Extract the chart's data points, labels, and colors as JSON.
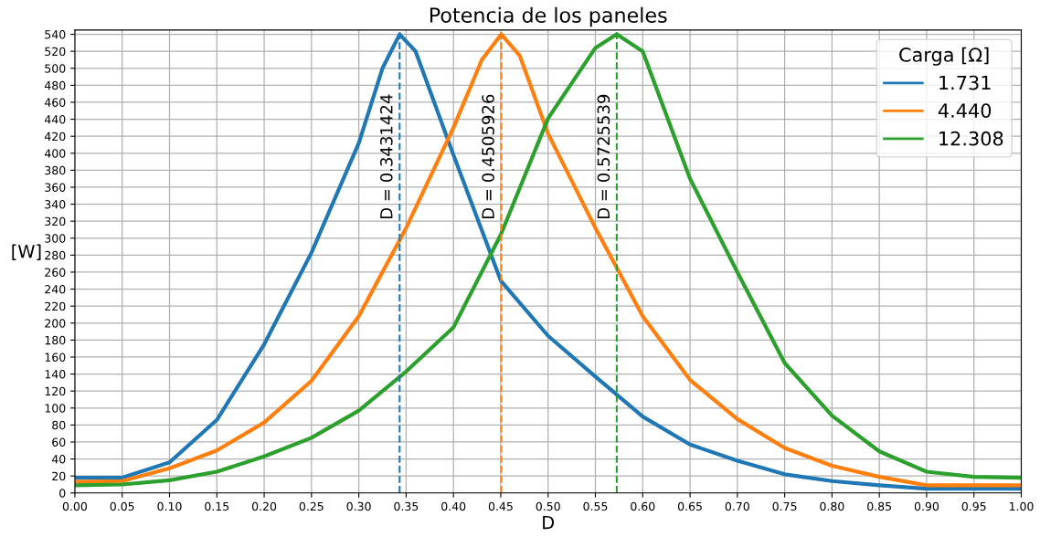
{
  "chart_data": {
    "type": "line",
    "title": "Potencia de los paneles",
    "xlabel": "D",
    "ylabel": "[W]",
    "legend_title": "Carga [Ω]",
    "legend": "top right",
    "grid": true,
    "xlim": [
      0,
      1
    ],
    "ylim": [
      0,
      545
    ],
    "xticks": [
      {
        "value": 0,
        "label": "0.00"
      },
      {
        "value": 0.05,
        "label": "0.05"
      },
      {
        "value": 0.1,
        "label": "0.10"
      },
      {
        "value": 0.15,
        "label": "0.15"
      },
      {
        "value": 0.2,
        "label": "0.20"
      },
      {
        "value": 0.25,
        "label": "0.25"
      },
      {
        "value": 0.3,
        "label": "0.30"
      },
      {
        "value": 0.35,
        "label": "0.35"
      },
      {
        "value": 0.4,
        "label": "0.40"
      },
      {
        "value": 0.45,
        "label": "0.45"
      },
      {
        "value": 0.5,
        "label": "0.50"
      },
      {
        "value": 0.55,
        "label": "0.55"
      },
      {
        "value": 0.6,
        "label": "0.60"
      },
      {
        "value": 0.65,
        "label": "0.65"
      },
      {
        "value": 0.7,
        "label": "0.70"
      },
      {
        "value": 0.75,
        "label": "0.75"
      },
      {
        "value": 0.8,
        "label": "0.80"
      },
      {
        "value": 0.85,
        "label": "0.85"
      },
      {
        "value": 0.9,
        "label": "0.90"
      },
      {
        "value": 0.95,
        "label": "0.95"
      },
      {
        "value": 1,
        "label": "1.00"
      }
    ],
    "yticks": [
      0,
      20,
      40,
      60,
      80,
      100,
      120,
      140,
      160,
      180,
      200,
      220,
      240,
      260,
      280,
      300,
      320,
      340,
      360,
      380,
      400,
      420,
      440,
      460,
      480,
      500,
      520,
      540
    ],
    "series": [
      {
        "name": "1.731",
        "color": "#1f77b4",
        "x": [
          0,
          0.05,
          0.1,
          0.15,
          0.2,
          0.25,
          0.3,
          0.325,
          0.3431424,
          0.36,
          0.4,
          0.45,
          0.5,
          0.55,
          0.6,
          0.65,
          0.7,
          0.75,
          0.8,
          0.85,
          0.9,
          0.95,
          1
        ],
        "values": [
          18,
          18,
          36,
          86,
          175,
          283,
          412,
          500,
          540,
          520,
          398,
          250,
          185,
          137,
          90,
          57,
          38,
          22,
          14,
          9,
          5,
          5,
          5
        ]
      },
      {
        "name": "4.440",
        "color": "#ff7f0e",
        "x": [
          0,
          0.05,
          0.1,
          0.15,
          0.2,
          0.25,
          0.3,
          0.35,
          0.4,
          0.43,
          0.4505926,
          0.47,
          0.5,
          0.55,
          0.6,
          0.65,
          0.7,
          0.75,
          0.8,
          0.85,
          0.9,
          0.95,
          1
        ],
        "values": [
          13,
          14,
          29,
          50,
          83,
          132,
          208,
          312,
          430,
          510,
          540,
          515,
          423,
          312,
          208,
          133,
          87,
          53,
          32,
          19,
          9,
          9,
          9
        ]
      },
      {
        "name": "12.308",
        "color": "#2ca02c",
        "x": [
          0,
          0.05,
          0.1,
          0.15,
          0.2,
          0.25,
          0.3,
          0.35,
          0.4,
          0.45,
          0.5,
          0.55,
          0.5725539,
          0.6,
          0.65,
          0.7,
          0.75,
          0.8,
          0.85,
          0.9,
          0.95,
          1
        ],
        "values": [
          9,
          10,
          15,
          25,
          43,
          65,
          97,
          143,
          195,
          304,
          441,
          524,
          540,
          520,
          370,
          260,
          153,
          91,
          49,
          25,
          19,
          18
        ]
      }
    ],
    "ref_lines": [
      {
        "axis": "x",
        "value": 0.3431424,
        "label": "D = 0.3431424",
        "color": "#1f77b4",
        "line_style": "dashed"
      },
      {
        "axis": "x",
        "value": 0.4505926,
        "label": "D = 0.4505926",
        "color": "#ff7f0e",
        "line_style": "dashed"
      },
      {
        "axis": "x",
        "value": 0.5725539,
        "label": "D = 0.5725539",
        "color": "#2ca02c",
        "line_style": "dashed"
      }
    ]
  }
}
